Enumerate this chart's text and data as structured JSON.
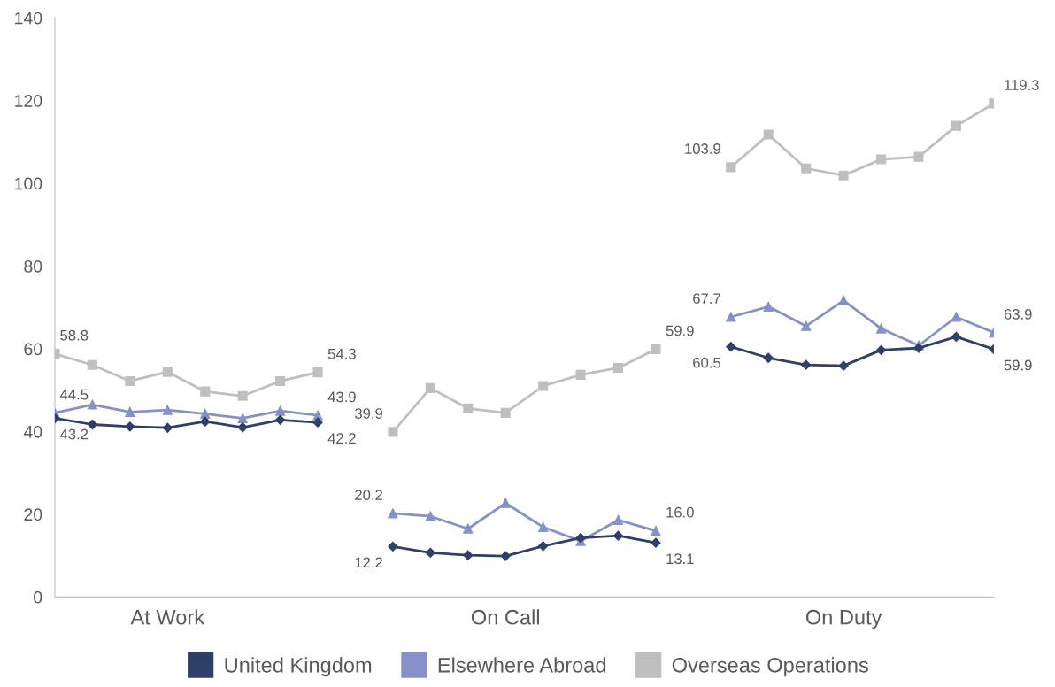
{
  "chart_data": {
    "type": "line",
    "categories": [
      null,
      null,
      null,
      "At Work",
      null,
      null,
      null,
      null,
      null,
      null,
      null,
      null,
      "On Call",
      null,
      null,
      null,
      null,
      null,
      null,
      null,
      null,
      "On Duty",
      null,
      null,
      null,
      null
    ],
    "ylim": [
      0,
      140
    ],
    "yticks": [
      0,
      20,
      40,
      60,
      80,
      100,
      120,
      140
    ],
    "grid": false,
    "legend": "bottom",
    "line_style": "solid",
    "series": [
      {
        "name": "United Kingdom",
        "color": "#2f4068",
        "marker": "diamond",
        "values": [
          43.2,
          41.7,
          41.2,
          40.9,
          42.4,
          41.0,
          42.8,
          42.2,
          null,
          12.2,
          10.7,
          10.1,
          9.9,
          12.3,
          14.3,
          14.8,
          13.1,
          null,
          60.5,
          57.8,
          56.1,
          55.9,
          59.7,
          60.2,
          62.9,
          59.9
        ],
        "value_labels": [
          "43.2",
          null,
          null,
          null,
          null,
          null,
          null,
          "42.2",
          null,
          "12.2",
          null,
          null,
          null,
          null,
          null,
          null,
          "13.1",
          null,
          "60.5",
          null,
          null,
          null,
          null,
          null,
          null,
          "59.9"
        ]
      },
      {
        "name": "Elsewhere Abroad",
        "color": "#8591c8",
        "marker": "triangle",
        "values": [
          44.5,
          46.5,
          44.7,
          45.2,
          44.3,
          43.2,
          45.0,
          43.9,
          null,
          20.2,
          19.5,
          16.5,
          22.7,
          16.9,
          13.5,
          18.6,
          16.0,
          null,
          67.7,
          70.2,
          65.5,
          71.7,
          64.9,
          60.8,
          67.7,
          63.9
        ],
        "value_labels": [
          "44.5",
          null,
          null,
          null,
          null,
          null,
          null,
          "43.9",
          null,
          "20.2",
          null,
          null,
          null,
          null,
          null,
          null,
          "16.0",
          null,
          "67.7",
          null,
          null,
          null,
          null,
          null,
          null,
          "63.9"
        ]
      },
      {
        "name": "Overseas Operations",
        "color": "#bfbfbf",
        "marker": "square",
        "values": [
          58.8,
          56.1,
          52.2,
          54.4,
          49.7,
          48.6,
          52.2,
          54.3,
          null,
          39.9,
          50.5,
          45.6,
          44.5,
          51.0,
          53.7,
          55.4,
          59.9,
          null,
          103.9,
          111.8,
          103.6,
          101.9,
          105.8,
          106.4,
          113.9,
          119.3
        ],
        "value_labels": [
          "58.8",
          null,
          null,
          null,
          null,
          null,
          null,
          "54.3",
          null,
          "39.9",
          null,
          null,
          null,
          null,
          null,
          null,
          "59.9",
          null,
          "103.9",
          null,
          null,
          null,
          null,
          null,
          null,
          "119.3"
        ]
      }
    ]
  }
}
